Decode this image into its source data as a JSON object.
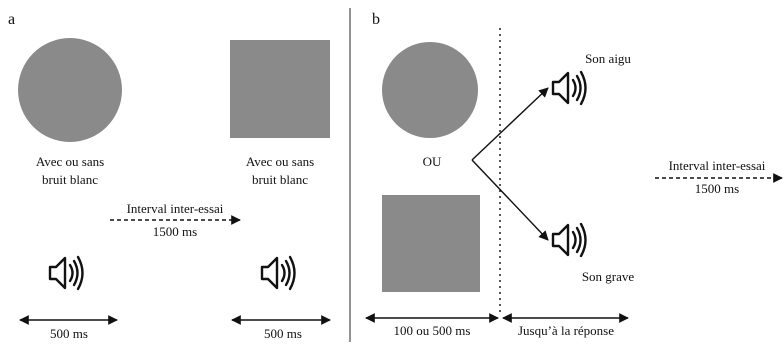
{
  "panel_a": {
    "label": "a",
    "stim1_caption": [
      "Avec ou sans",
      "bruit blanc"
    ],
    "stim2_caption": [
      "Avec ou sans",
      "bruit blanc"
    ],
    "iti_label": "Interval inter-essai",
    "iti_duration": "1500 ms",
    "duration1": "500 ms",
    "duration2": "500 ms"
  },
  "panel_b": {
    "label": "b",
    "or_label": "OU",
    "high_sound": "Son aigu",
    "low_sound": "Son grave",
    "stim_duration": "100 ou 500 ms",
    "response_window": "Jusqu’à la réponse",
    "iti_label": "Interval inter-essai",
    "iti_duration": "1500 ms"
  },
  "colors": {
    "shape_fill": "#8a8a8a",
    "ink": "#111111"
  },
  "icons": [
    "circle-stimulus",
    "square-stimulus",
    "speaker-icon",
    "arrow"
  ]
}
